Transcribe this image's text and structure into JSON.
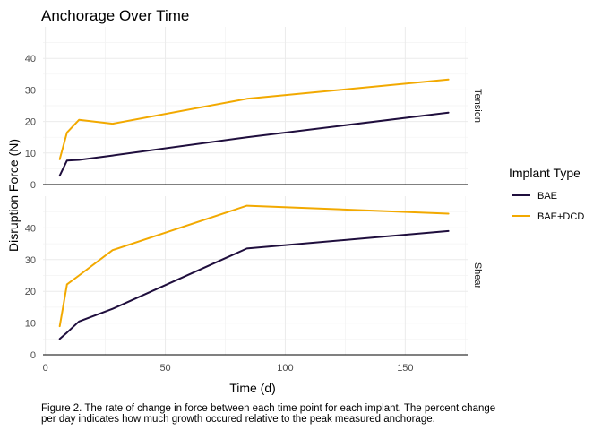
{
  "chart_data": {
    "type": "line",
    "title": "Anchorage Over Time",
    "xlabel": "Time (d)",
    "ylabel": "Disruption Force (N)",
    "caption": [
      "Figure 2. The rate of change in force between each time point for each implant. The percent change",
      "per day indicates how much growth occured relative to the peak measured anchorage."
    ],
    "legend": {
      "title": "Implant Type",
      "position": "right"
    },
    "xlim": [
      -1,
      176
    ],
    "x_ticks": [
      0,
      50,
      100,
      150
    ],
    "ylim": [
      0,
      50
    ],
    "y_ticks": [
      0,
      10,
      20,
      30,
      40
    ],
    "grid": true,
    "facets": [
      {
        "label": "Tension",
        "series": [
          {
            "name": "BAE",
            "color": "#1f0e3d",
            "x": [
              6,
              9,
              14,
              28,
              84,
              168
            ],
            "y": [
              2.8,
              7.6,
              7.8,
              9.2,
              15.0,
              22.8
            ]
          },
          {
            "name": "BAE+DCD",
            "color": "#f2a900",
            "x": [
              6,
              9,
              14,
              28,
              84,
              168
            ],
            "y": [
              8.0,
              16.5,
              20.5,
              19.3,
              27.2,
              33.3
            ]
          }
        ]
      },
      {
        "label": "Shear",
        "series": [
          {
            "name": "BAE",
            "color": "#1f0e3d",
            "x": [
              6,
              9,
              14,
              28,
              84,
              168
            ],
            "y": [
              5.0,
              7.0,
              10.5,
              14.5,
              33.5,
              39.0
            ]
          },
          {
            "name": "BAE+DCD",
            "color": "#f2a900",
            "x": [
              6,
              9,
              14,
              28,
              84,
              168
            ],
            "y": [
              9.0,
              22.2,
              25.0,
              33.0,
              47.0,
              44.5
            ]
          }
        ]
      }
    ]
  }
}
